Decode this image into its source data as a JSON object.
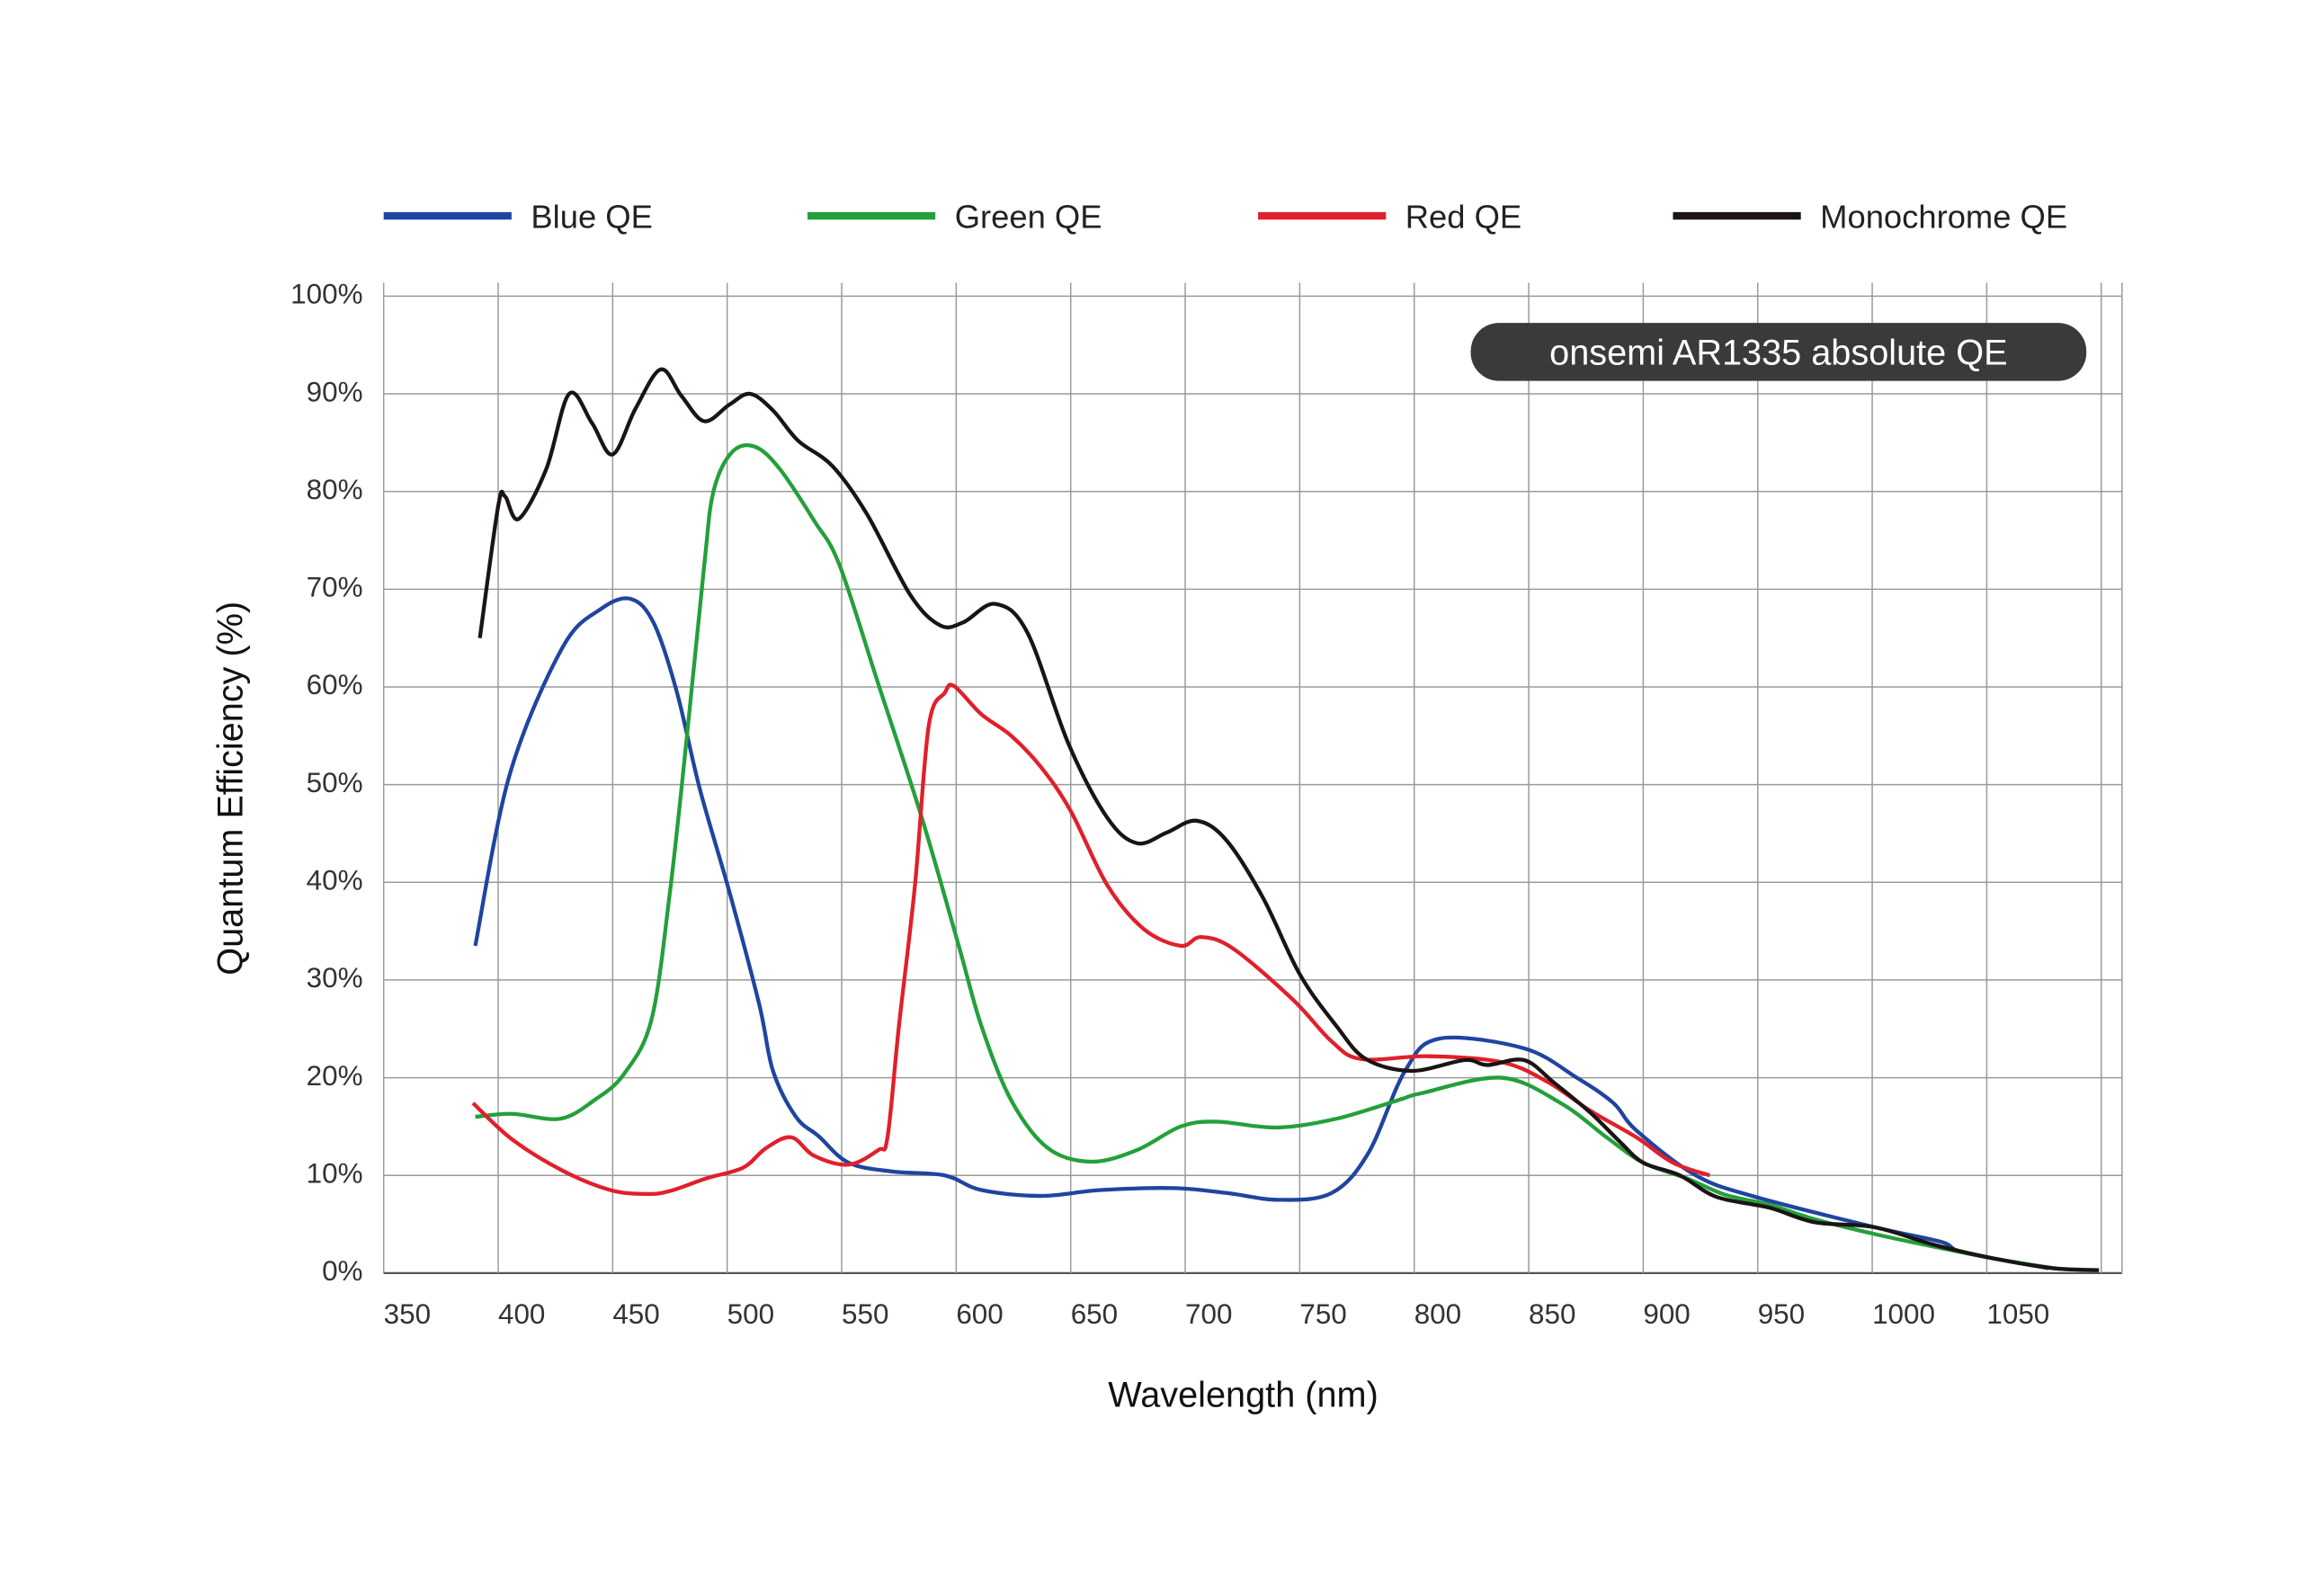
{
  "chart_data": {
    "type": "line",
    "title": "",
    "annotation": "onsemi AR1335 absolute QE",
    "xlabel": "Wavelength (nm)",
    "ylabel": "Quantum Efficiency (%)",
    "xlim": [
      350,
      1100
    ],
    "ylim": [
      0,
      100
    ],
    "grid": true,
    "legend_position": "top",
    "x_ticks": [
      "350",
      "400",
      "450",
      "500",
      "550",
      "600",
      "650",
      "700",
      "750",
      "800",
      "850",
      "900",
      "950",
      "1000",
      "1050"
    ],
    "y_ticks": [
      "0%",
      "10%",
      "20%",
      "30%",
      "40%",
      "50%",
      "60%",
      "70%",
      "80%",
      "90%",
      "100%"
    ],
    "series": [
      {
        "name": "Blue QE",
        "color": "#1f45a0",
        "x": [
          390,
          405,
          428,
          445,
          458,
          468,
          478,
          488,
          501,
          514,
          520,
          530,
          540,
          553,
          572,
          595,
          611,
          637,
          663,
          695,
          718,
          741,
          764,
          780,
          796,
          811,
          848,
          871,
          887,
          897,
          923,
          949,
          1001,
          1030,
          1040,
          1077
        ],
        "y": [
          33.5,
          51,
          64,
          68,
          69,
          66.5,
          59.5,
          49.6,
          39,
          27.5,
          20.7,
          16,
          14,
          11.3,
          10.4,
          10,
          8.5,
          7.9,
          8.5,
          8.7,
          8.2,
          7.5,
          8.2,
          12.3,
          20.7,
          24,
          23,
          20,
          17.4,
          14.6,
          10,
          7.8,
          4.7,
          3.2,
          2.1,
          0.5
        ]
      },
      {
        "name": "Green QE",
        "color": "#23a03a",
        "x": [
          390,
          406,
          427,
          442,
          455,
          467,
          475,
          482,
          490,
          494,
          502,
          512,
          523,
          538,
          549,
          566,
          585,
          601,
          611,
          624,
          640,
          659,
          679,
          698,
          714,
          740,
          766,
          793,
          803,
          838,
          864,
          884,
          900,
          919,
          936,
          955,
          975,
          1001,
          1027,
          1053,
          1079
        ],
        "y": [
          16,
          16.3,
          15.8,
          17.7,
          20.4,
          26,
          39,
          54,
          72.5,
          80,
          84,
          84.6,
          82.3,
          77,
          72.5,
          60.3,
          46.6,
          33.6,
          25.3,
          17.7,
          12.8,
          11.4,
          12.6,
          15,
          15.5,
          14.9,
          15.8,
          17.7,
          18.4,
          20,
          17.4,
          13.9,
          11.3,
          9.7,
          8,
          7,
          5.5,
          4,
          2.7,
          1.5,
          0.5
        ]
      },
      {
        "name": "Red QE",
        "color": "#e0202a",
        "x": [
          389,
          406,
          428,
          449,
          465,
          475,
          491,
          507,
          517,
          528,
          538,
          553,
          566,
          570,
          575,
          582,
          588,
          595,
          599,
          611,
          624,
          637,
          650,
          666,
          682,
          698,
          707,
          721,
          747,
          764,
          777,
          806,
          838,
          858,
          877,
          897,
          913,
          929
        ],
        "y": [
          17.4,
          13.7,
          10.5,
          8.5,
          8.1,
          8.4,
          9.7,
          10.8,
          12.8,
          13.9,
          12,
          11.1,
          12.6,
          13.9,
          25.3,
          39.7,
          56,
          59.4,
          60.1,
          57.2,
          55,
          51.8,
          47.3,
          39.7,
          35.2,
          33.5,
          34.4,
          33.2,
          28,
          23.7,
          21.9,
          22.2,
          21.6,
          19.6,
          16.6,
          13.9,
          11.3,
          10
        ]
      },
      {
        "name": "Monochrome QE",
        "color": "#1a1414",
        "x": [
          392,
          400,
          403,
          409,
          421,
          431,
          441,
          450,
          460,
          471,
          480,
          490,
          501,
          510,
          520,
          531,
          546,
          561,
          580,
          593,
          603,
          617,
          631,
          649,
          666,
          679,
          692,
          705,
          718,
          734,
          750,
          766,
          779,
          799,
          822,
          832,
          848,
          861,
          877,
          890,
          900,
          916,
          932,
          955,
          975,
          1001,
          1027,
          1053,
          1079,
          1099
        ],
        "y": [
          65,
          78.5,
          79.5,
          77.2,
          82.3,
          90,
          87,
          83.8,
          88.5,
          92.5,
          89.8,
          87.2,
          88.9,
          90,
          88.3,
          85.2,
          82.6,
          77.7,
          69.4,
          66.3,
          66.6,
          68.5,
          65.6,
          54.2,
          46.6,
          44,
          45.1,
          46.3,
          44.3,
          38.4,
          30.6,
          25.3,
          21.9,
          20.7,
          21.8,
          21.3,
          21.8,
          19.5,
          16.4,
          13.4,
          11.3,
          10,
          7.8,
          6.7,
          5.2,
          4.7,
          2.9,
          1.5,
          0.5,
          0.3
        ]
      }
    ]
  }
}
